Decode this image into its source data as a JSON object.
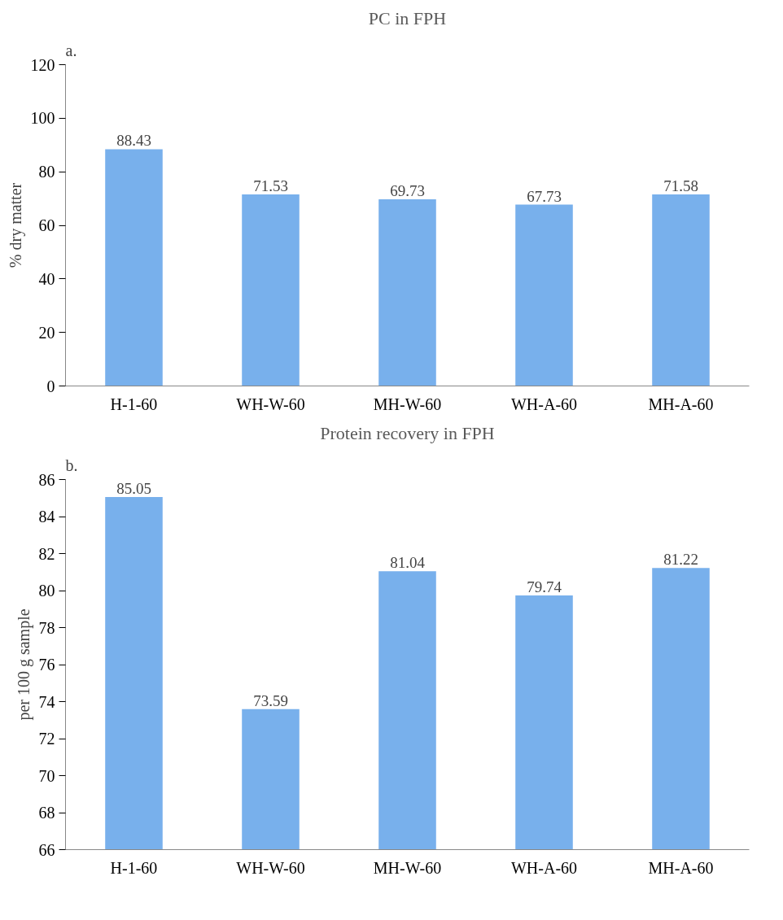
{
  "chart_data": [
    {
      "type": "bar",
      "title": "PC in FPH",
      "ylabel": "% dry matter",
      "annotations": [
        "a."
      ],
      "categories": [
        "H-1-60",
        "WH-W-60",
        "MH-W-60",
        "WH-A-60",
        "MH-A-60"
      ],
      "values": [
        88.43,
        71.53,
        69.73,
        67.73,
        71.58
      ],
      "color": "#78b0ec",
      "ylim": [
        0,
        120
      ],
      "yticks": [
        0,
        20,
        40,
        60,
        80,
        100,
        120
      ],
      "grid": false,
      "data_labels": true
    },
    {
      "type": "bar",
      "title": "Protein recovery in FPH",
      "ylabel": "per 100 g sample",
      "annotations": [
        "b."
      ],
      "categories": [
        "H-1-60",
        "WH-W-60",
        "MH-W-60",
        "WH-A-60",
        "MH-A-60"
      ],
      "values": [
        85.05,
        73.59,
        81.04,
        79.74,
        81.22
      ],
      "color": "#78b0ec",
      "ylim": [
        66,
        86
      ],
      "yticks": [
        66,
        68,
        70,
        72,
        74,
        76,
        78,
        80,
        82,
        84,
        86
      ],
      "grid": false,
      "data_labels": true
    }
  ]
}
